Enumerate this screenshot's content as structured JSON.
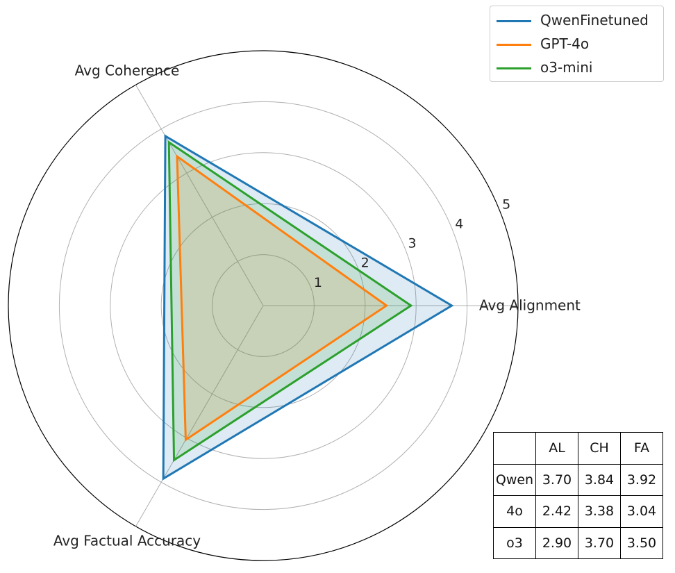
{
  "chart_data": {
    "type": "radar",
    "axes": [
      "Avg Alignment",
      "Avg Coherence",
      "Avg Factual Accuracy"
    ],
    "radial_ticks": [
      "1",
      "2",
      "3",
      "4",
      "5"
    ],
    "rmax": 5,
    "grid": true,
    "legend_position": "top-right",
    "series": [
      {
        "name": "QwenFinetuned",
        "color": "#1f77b4",
        "values": [
          3.7,
          3.84,
          3.92
        ]
      },
      {
        "name": "GPT-4o",
        "color": "#ff7f0e",
        "values": [
          2.42,
          3.38,
          3.04
        ]
      },
      {
        "name": "o3-mini",
        "color": "#2ca02c",
        "values": [
          2.9,
          3.7,
          3.5
        ]
      }
    ],
    "table": {
      "header": [
        "",
        "AL",
        "CH",
        "FA"
      ],
      "rows": [
        [
          "Qwen",
          "3.70",
          "3.84",
          "3.92"
        ],
        [
          "4o",
          "2.42",
          "3.38",
          "3.04"
        ],
        [
          "o3",
          "2.90",
          "3.70",
          "3.50"
        ]
      ]
    }
  }
}
